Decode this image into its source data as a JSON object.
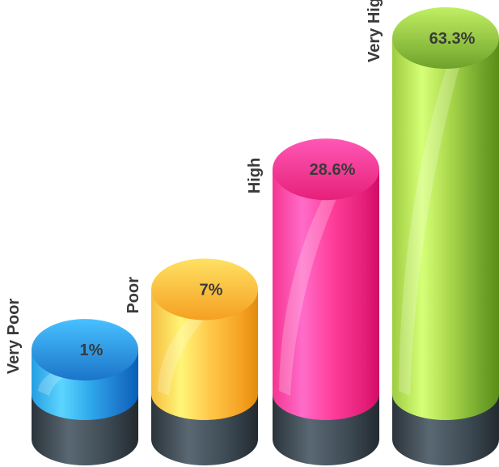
{
  "chart_data": {
    "type": "bar",
    "style": "3d-cylinder",
    "categories": [
      "Very Poor",
      "Poor",
      "High",
      "Very High"
    ],
    "values": [
      1,
      7,
      28.6,
      63.3
    ],
    "value_labels": [
      "1%",
      "7%",
      "28.6%",
      "63.3%"
    ],
    "colors": [
      "#2fa8ec",
      "#ffc84a",
      "#ff3f9c",
      "#a8d64a"
    ],
    "colors_dark": [
      "#1b74c9",
      "#f5a021",
      "#e6207a",
      "#6ea22a"
    ],
    "base_color": "#3e4b55",
    "title": "",
    "xlabel": "",
    "ylabel": "",
    "ylim": [
      0,
      63.3
    ],
    "grid": false,
    "legend": "none"
  }
}
